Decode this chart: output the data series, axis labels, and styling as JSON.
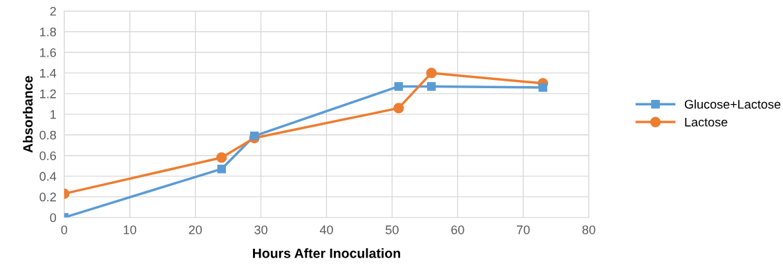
{
  "chart_data": {
    "type": "line",
    "xlabel": "Hours After Inoculation",
    "ylabel": "Absorbance",
    "xlim": [
      0,
      80
    ],
    "xticks": [
      0,
      10,
      20,
      30,
      40,
      50,
      60,
      70,
      80
    ],
    "ylim": [
      0,
      2
    ],
    "yticks": [
      0,
      0.2,
      0.4,
      0.6,
      0.8,
      1,
      1.2,
      1.4,
      1.6,
      1.8,
      2
    ],
    "grid": true,
    "legend": "right",
    "line_style": "solid",
    "series": [
      {
        "name": "Glucose+Lactose",
        "color": "#5b9bd5",
        "marker": "square",
        "x": [
          0,
          24,
          29,
          51,
          56,
          73
        ],
        "values": [
          0.0,
          0.47,
          0.79,
          1.27,
          1.27,
          1.26
        ]
      },
      {
        "name": "Lactose",
        "color": "#ed7d31",
        "marker": "circle",
        "x": [
          0,
          24,
          29,
          51,
          56,
          73
        ],
        "values": [
          0.23,
          0.58,
          0.77,
          1.06,
          1.4,
          1.3
        ]
      }
    ]
  }
}
